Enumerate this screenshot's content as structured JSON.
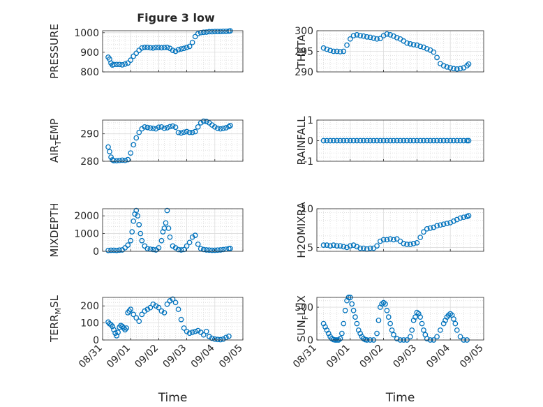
{
  "figure": {
    "title": "Figure 3 low",
    "marker_color": "#0072BD",
    "axis_color": "#262626",
    "grid_color": "#dcdcdc",
    "x_axis": {
      "label": "Time",
      "range": [
        0,
        5
      ],
      "ticks": [
        0,
        1,
        2,
        3,
        4,
        5
      ],
      "tick_labels": [
        "08/31",
        "09/01",
        "09/02",
        "09/03",
        "09/04",
        "09/05"
      ]
    }
  },
  "chart_data": [
    {
      "type": "scatter",
      "ylabel": "PRESSURE",
      "ylim": [
        800,
        1010
      ],
      "yticks": [
        800,
        900,
        1000
      ],
      "grid": true,
      "x": [
        0.2,
        0.25,
        0.3,
        0.35,
        0.4,
        0.5,
        0.6,
        0.7,
        0.8,
        0.9,
        1.0,
        1.1,
        1.2,
        1.3,
        1.4,
        1.5,
        1.6,
        1.7,
        1.8,
        1.9,
        2.0,
        2.1,
        2.2,
        2.3,
        2.4,
        2.5,
        2.6,
        2.7,
        2.8,
        2.9,
        3.0,
        3.1,
        3.2,
        3.3,
        3.4,
        3.5,
        3.6,
        3.7,
        3.8,
        3.9,
        4.0,
        4.1,
        4.2,
        4.3,
        4.4,
        4.5,
        4.55
      ],
      "y": [
        875,
        865,
        845,
        835,
        838,
        838,
        838,
        836,
        840,
        845,
        860,
        880,
        895,
        910,
        922,
        925,
        925,
        923,
        922,
        924,
        924,
        923,
        924,
        925,
        920,
        910,
        905,
        913,
        917,
        920,
        925,
        930,
        950,
        980,
        995,
        1000,
        1002,
        1003,
        1005,
        1005,
        1006,
        1006,
        1006,
        1007,
        1007,
        1008,
        1009
      ]
    },
    {
      "type": "scatter",
      "ylabel": "THETA",
      "ylim": [
        290,
        300
      ],
      "yticks": [
        290,
        295,
        300
      ],
      "grid": true,
      "x": [
        0.2,
        0.3,
        0.4,
        0.5,
        0.6,
        0.7,
        0.8,
        0.9,
        1.0,
        1.1,
        1.2,
        1.3,
        1.4,
        1.5,
        1.6,
        1.7,
        1.8,
        1.9,
        2.0,
        2.1,
        2.2,
        2.3,
        2.4,
        2.5,
        2.6,
        2.7,
        2.8,
        2.9,
        3.0,
        3.1,
        3.2,
        3.3,
        3.4,
        3.5,
        3.6,
        3.7,
        3.8,
        3.9,
        4.0,
        4.1,
        4.2,
        4.3,
        4.4,
        4.5,
        4.55
      ],
      "y": [
        295.8,
        295.5,
        295.2,
        295.0,
        295.0,
        294.9,
        295.0,
        296.5,
        298.0,
        298.8,
        299.0,
        298.8,
        298.7,
        298.5,
        298.4,
        298.2,
        298.0,
        298.1,
        298.8,
        299.2,
        299.0,
        298.7,
        298.3,
        298.0,
        297.5,
        297.0,
        296.8,
        296.6,
        296.5,
        296.2,
        296.0,
        295.6,
        295.3,
        294.8,
        293.5,
        292.0,
        291.5,
        291.2,
        291.0,
        290.8,
        290.7,
        290.8,
        291.0,
        291.5,
        291.9
      ]
    },
    {
      "type": "scatter",
      "ylabel": "AIR_TEMP",
      "ylim": [
        280,
        295
      ],
      "yticks": [
        280,
        290
      ],
      "grid": true,
      "x": [
        0.2,
        0.25,
        0.3,
        0.35,
        0.4,
        0.5,
        0.6,
        0.7,
        0.8,
        0.9,
        1.0,
        1.1,
        1.2,
        1.3,
        1.4,
        1.5,
        1.6,
        1.7,
        1.8,
        1.9,
        2.0,
        2.1,
        2.2,
        2.3,
        2.4,
        2.5,
        2.6,
        2.7,
        2.8,
        2.9,
        3.0,
        3.1,
        3.2,
        3.3,
        3.4,
        3.5,
        3.6,
        3.7,
        3.8,
        3.9,
        4.0,
        4.1,
        4.2,
        4.3,
        4.4,
        4.5,
        4.55
      ],
      "y": [
        285.2,
        283.5,
        281.5,
        280.5,
        280.2,
        280.2,
        280.3,
        280.4,
        280.3,
        280.6,
        283.0,
        286.0,
        288.5,
        290.5,
        291.8,
        292.5,
        292.3,
        292.1,
        292.0,
        291.8,
        292.4,
        292.5,
        292.0,
        292.2,
        292.6,
        292.8,
        292.4,
        290.5,
        290.3,
        290.6,
        290.8,
        290.5,
        290.5,
        290.8,
        292.5,
        294.0,
        294.6,
        294.5,
        294.0,
        293.2,
        292.5,
        292.0,
        291.8,
        292.0,
        292.2,
        292.6,
        293.0
      ]
    },
    {
      "type": "scatter",
      "ylabel": "RAINFALL",
      "ylim": [
        -1,
        1
      ],
      "yticks": [
        -1,
        0,
        1
      ],
      "grid": true,
      "x": [
        0.2,
        0.3,
        0.4,
        0.5,
        0.6,
        0.7,
        0.8,
        0.9,
        1.0,
        1.1,
        1.2,
        1.3,
        1.4,
        1.5,
        1.6,
        1.7,
        1.8,
        1.9,
        2.0,
        2.1,
        2.2,
        2.3,
        2.4,
        2.5,
        2.6,
        2.7,
        2.8,
        2.9,
        3.0,
        3.1,
        3.2,
        3.3,
        3.4,
        3.5,
        3.6,
        3.7,
        3.8,
        3.9,
        4.0,
        4.1,
        4.2,
        4.3,
        4.4,
        4.5,
        4.55
      ],
      "y": [
        0,
        0,
        0,
        0,
        0,
        0,
        0,
        0,
        0,
        0,
        0,
        0,
        0,
        0,
        0,
        0,
        0,
        0,
        0,
        0,
        0,
        0,
        0,
        0,
        0,
        0,
        0,
        0,
        0,
        0,
        0,
        0,
        0,
        0,
        0,
        0,
        0,
        0,
        0,
        0,
        0,
        0,
        0,
        0,
        0
      ]
    },
    {
      "type": "scatter",
      "ylabel": "MIXDEPTH",
      "ylim": [
        0,
        2400
      ],
      "yticks": [
        0,
        1000,
        2000
      ],
      "grid": true,
      "x": [
        0.2,
        0.3,
        0.4,
        0.5,
        0.6,
        0.7,
        0.8,
        0.9,
        1.0,
        1.05,
        1.1,
        1.15,
        1.2,
        1.25,
        1.3,
        1.35,
        1.4,
        1.5,
        1.6,
        1.7,
        1.8,
        1.9,
        2.0,
        2.1,
        2.15,
        2.2,
        2.25,
        2.3,
        2.35,
        2.4,
        2.5,
        2.6,
        2.7,
        2.8,
        2.9,
        3.0,
        3.1,
        3.2,
        3.3,
        3.4,
        3.5,
        3.6,
        3.7,
        3.8,
        3.9,
        4.0,
        4.1,
        4.2,
        4.3,
        4.4,
        4.5,
        4.55
      ],
      "y": [
        50,
        60,
        60,
        50,
        70,
        80,
        200,
        350,
        600,
        1100,
        1700,
        2100,
        2300,
        2000,
        1500,
        1000,
        600,
        300,
        150,
        120,
        100,
        80,
        200,
        600,
        1100,
        1300,
        1600,
        2300,
        1300,
        800,
        300,
        200,
        100,
        80,
        100,
        300,
        500,
        800,
        900,
        400,
        150,
        100,
        80,
        70,
        60,
        60,
        70,
        80,
        100,
        120,
        150,
        160
      ]
    },
    {
      "type": "scatter",
      "ylabel": "H2OMIXRA",
      "ylim": [
        4.5,
        10
      ],
      "yticks": [
        5,
        10
      ],
      "grid": true,
      "x": [
        0.2,
        0.3,
        0.4,
        0.5,
        0.6,
        0.7,
        0.8,
        0.9,
        1.0,
        1.1,
        1.2,
        1.3,
        1.4,
        1.5,
        1.6,
        1.7,
        1.8,
        1.9,
        2.0,
        2.1,
        2.2,
        2.3,
        2.4,
        2.5,
        2.6,
        2.7,
        2.8,
        2.9,
        3.0,
        3.1,
        3.2,
        3.3,
        3.4,
        3.5,
        3.6,
        3.7,
        3.8,
        3.9,
        4.0,
        4.1,
        4.2,
        4.3,
        4.4,
        4.5,
        4.55
      ],
      "y": [
        5.3,
        5.3,
        5.2,
        5.3,
        5.2,
        5.2,
        5.1,
        5.0,
        5.2,
        5.3,
        5.1,
        4.9,
        4.9,
        4.8,
        4.9,
        4.9,
        5.2,
        5.8,
        6.0,
        6.0,
        6.1,
        6.0,
        6.1,
        5.8,
        5.5,
        5.4,
        5.4,
        5.5,
        5.6,
        6.3,
        7.0,
        7.4,
        7.5,
        7.6,
        7.8,
        7.9,
        8.0,
        8.1,
        8.2,
        8.4,
        8.6,
        8.8,
        8.9,
        9.0,
        9.1
      ]
    },
    {
      "type": "scatter",
      "ylabel": "TERR_MSL",
      "ylim": [
        0,
        250
      ],
      "yticks": [
        0,
        100,
        200
      ],
      "grid": true,
      "x": [
        0.2,
        0.25,
        0.3,
        0.35,
        0.4,
        0.45,
        0.5,
        0.55,
        0.6,
        0.65,
        0.7,
        0.75,
        0.8,
        0.85,
        0.9,
        0.95,
        1.0,
        1.1,
        1.2,
        1.3,
        1.4,
        1.5,
        1.6,
        1.7,
        1.8,
        1.9,
        2.0,
        2.1,
        2.2,
        2.3,
        2.4,
        2.5,
        2.6,
        2.7,
        2.8,
        2.9,
        3.0,
        3.1,
        3.2,
        3.3,
        3.4,
        3.5,
        3.6,
        3.7,
        3.8,
        3.9,
        4.0,
        4.1,
        4.2,
        4.3,
        4.4,
        4.5
      ],
      "y": [
        105,
        95,
        90,
        80,
        60,
        40,
        25,
        45,
        75,
        85,
        80,
        70,
        60,
        70,
        160,
        170,
        180,
        150,
        130,
        110,
        150,
        170,
        180,
        190,
        210,
        200,
        190,
        170,
        160,
        210,
        230,
        240,
        220,
        180,
        120,
        70,
        50,
        40,
        45,
        50,
        55,
        45,
        30,
        50,
        20,
        10,
        5,
        3,
        2,
        5,
        15,
        22
      ]
    },
    {
      "type": "scatter",
      "ylabel": "SUN_FLUX",
      "ylim": [
        0,
        650
      ],
      "yticks": [
        0,
        500
      ],
      "grid": true,
      "x": [
        0.2,
        0.25,
        0.3,
        0.35,
        0.4,
        0.45,
        0.5,
        0.55,
        0.6,
        0.65,
        0.7,
        0.75,
        0.8,
        0.85,
        0.9,
        0.95,
        1.0,
        1.05,
        1.1,
        1.15,
        1.2,
        1.25,
        1.3,
        1.35,
        1.4,
        1.45,
        1.5,
        1.6,
        1.7,
        1.8,
        1.85,
        1.9,
        1.95,
        2.0,
        2.05,
        2.1,
        2.15,
        2.2,
        2.25,
        2.3,
        2.4,
        2.5,
        2.6,
        2.7,
        2.8,
        2.85,
        2.9,
        2.95,
        3.0,
        3.05,
        3.1,
        3.15,
        3.2,
        3.25,
        3.3,
        3.4,
        3.5,
        3.6,
        3.7,
        3.8,
        3.85,
        3.9,
        3.95,
        4.0,
        4.05,
        4.1,
        4.15,
        4.2,
        4.3,
        4.4,
        4.5
      ],
      "y": [
        250,
        200,
        150,
        100,
        50,
        20,
        5,
        0,
        0,
        0,
        20,
        100,
        250,
        450,
        600,
        650,
        650,
        550,
        450,
        350,
        250,
        150,
        100,
        50,
        20,
        5,
        0,
        0,
        0,
        100,
        300,
        500,
        550,
        570,
        550,
        450,
        350,
        250,
        150,
        80,
        20,
        0,
        0,
        0,
        50,
        150,
        300,
        350,
        420,
        400,
        350,
        250,
        150,
        80,
        20,
        0,
        0,
        50,
        150,
        250,
        300,
        350,
        380,
        400,
        380,
        320,
        250,
        150,
        50,
        0,
        0
      ]
    }
  ]
}
